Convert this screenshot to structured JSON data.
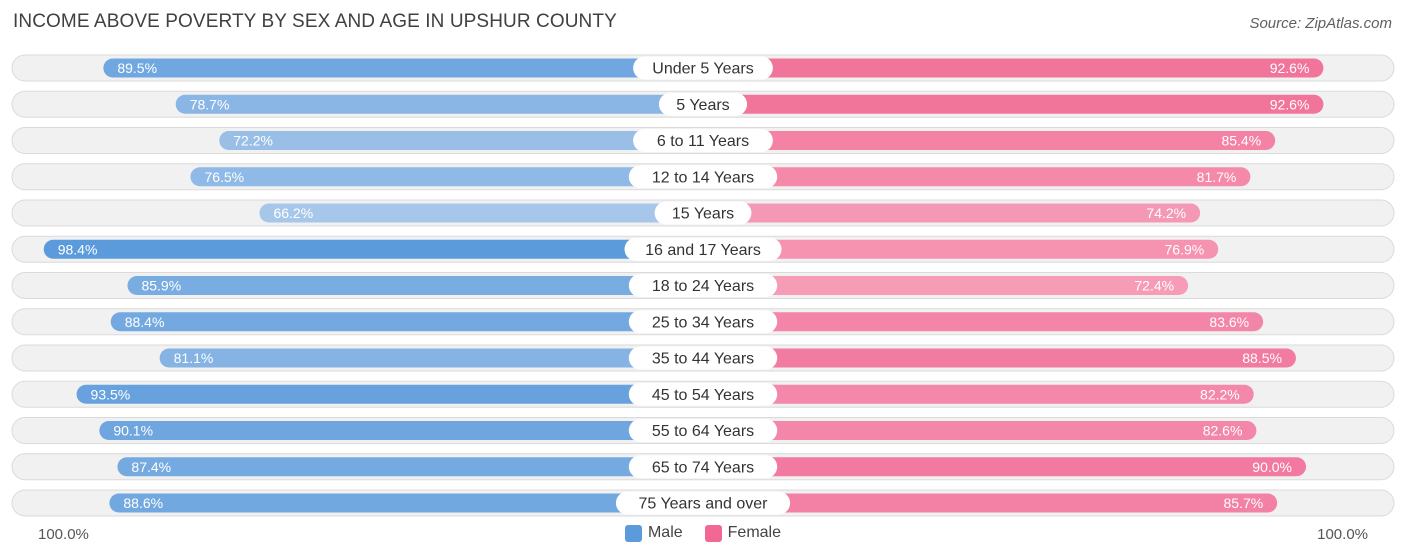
{
  "title": "INCOME ABOVE POVERTY BY SEX AND AGE IN UPSHUR COUNTY",
  "source": "Source: ZipAtlas.com",
  "colors": {
    "male_strong": "#5b9bdc",
    "male_light": "#a7c7ea",
    "female_strong": "#f06893",
    "female_light": "#f7a8c0",
    "row_bg": "#f1f1f1",
    "row_border": "#dadada"
  },
  "legend": {
    "male": "Male",
    "female": "Female"
  },
  "axis": {
    "left_label": "100.0%",
    "right_label": "100.0%"
  },
  "chart_data": {
    "type": "bar",
    "orientation": "diverging-horizontal",
    "title": "INCOME ABOVE POVERTY BY SEX AND AGE IN UPSHUR COUNTY",
    "categories": [
      "Under 5 Years",
      "5 Years",
      "6 to 11 Years",
      "12 to 14 Years",
      "15 Years",
      "16 and 17 Years",
      "18 to 24 Years",
      "25 to 34 Years",
      "35 to 44 Years",
      "45 to 54 Years",
      "55 to 64 Years",
      "65 to 74 Years",
      "75 Years and over"
    ],
    "series": [
      {
        "name": "Male",
        "values": [
          89.5,
          78.7,
          72.2,
          76.5,
          66.2,
          98.4,
          85.9,
          88.4,
          81.1,
          93.5,
          90.1,
          87.4,
          88.6
        ],
        "labels": [
          "89.5%",
          "78.7%",
          "72.2%",
          "76.5%",
          "66.2%",
          "98.4%",
          "85.9%",
          "88.4%",
          "81.1%",
          "93.5%",
          "90.1%",
          "87.4%",
          "88.6%"
        ]
      },
      {
        "name": "Female",
        "values": [
          92.6,
          92.6,
          85.4,
          81.7,
          74.2,
          76.9,
          72.4,
          83.6,
          88.5,
          82.2,
          82.6,
          90.0,
          85.7
        ],
        "labels": [
          "92.6%",
          "92.6%",
          "85.4%",
          "81.7%",
          "74.2%",
          "76.9%",
          "72.4%",
          "83.6%",
          "88.5%",
          "82.2%",
          "82.6%",
          "90.0%",
          "85.7%"
        ]
      }
    ],
    "xlim": [
      0,
      100
    ],
    "legend": "bottom-center"
  }
}
